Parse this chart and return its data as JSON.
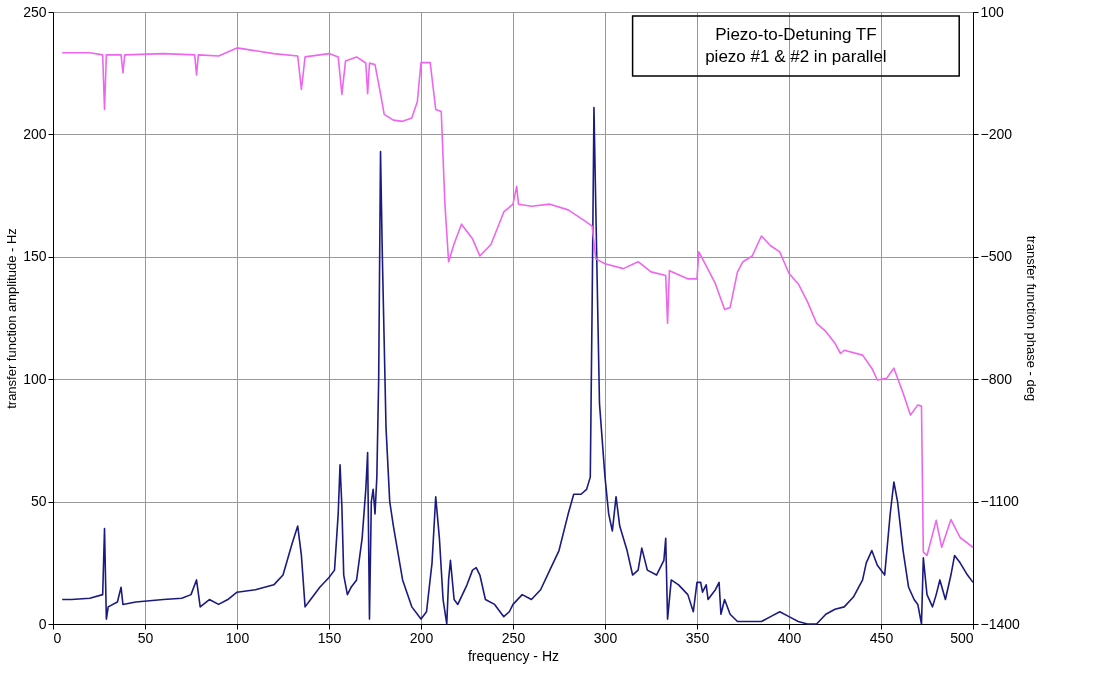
{
  "chart_data": {
    "type": "line",
    "xlabel": "frequency - Hz",
    "ylabel": "transfer function amplitude - Hz",
    "y2label": "transfer function phase - deg",
    "annotations": [
      "Piezo-to-Detuning TF",
      "piezo #1 & #2 in parallel"
    ],
    "xlim": [
      0,
      500
    ],
    "xticks": [
      0,
      50,
      100,
      150,
      200,
      250,
      300,
      350,
      400,
      450,
      500
    ],
    "ylim": [
      0,
      250
    ],
    "yticks": [
      0,
      50,
      100,
      150,
      200,
      250
    ],
    "y2lim": [
      -1400,
      100
    ],
    "y2ticks": [
      -1400,
      -1100,
      -800,
      -500,
      -200,
      100
    ],
    "grid": true,
    "marker": "none",
    "line_style": "solid",
    "series": [
      {
        "color": "#ee66ee",
        "axis": "y2",
        "x": [
          5,
          20,
          27,
          28,
          29,
          37,
          38,
          39,
          60,
          77,
          78,
          79,
          90,
          100,
          120,
          133,
          135,
          137,
          150,
          155,
          157,
          159,
          165,
          170,
          171,
          172,
          175,
          178,
          180,
          185,
          190,
          195,
          198,
          200,
          205,
          208,
          211,
          213,
          215,
          218,
          222,
          228,
          232,
          238,
          245,
          250,
          252,
          253,
          260,
          270,
          280,
          290,
          293,
          295,
          300,
          310,
          318,
          325,
          333,
          334,
          335,
          345,
          350,
          351,
          355,
          360,
          365,
          368,
          372,
          375,
          380,
          385,
          390,
          395,
          400,
          405,
          410,
          415,
          420,
          425,
          428,
          430,
          440,
          445,
          448,
          453,
          457,
          462,
          466,
          470,
          472,
          473,
          475,
          480,
          483,
          488,
          493,
          500
        ],
        "values": [
          0,
          0,
          -5,
          -139,
          -5,
          -5,
          -49,
          -5,
          -2,
          -5,
          -54,
          -5,
          -8,
          12,
          -2,
          -8,
          -90,
          -10,
          -2,
          -10,
          -102,
          -20,
          -10,
          -25,
          -100,
          -25,
          -29,
          -100,
          -151,
          -165,
          -168,
          -160,
          -120,
          -24,
          -24,
          -139,
          -144,
          -371,
          -512,
          -468,
          -420,
          -456,
          -498,
          -470,
          -390,
          -371,
          -327,
          -371,
          -376,
          -371,
          -385,
          -415,
          -425,
          -505,
          -517,
          -529,
          -512,
          -537,
          -546,
          -663,
          -534,
          -554,
          -554,
          -488,
          -522,
          -566,
          -629,
          -624,
          -537,
          -512,
          -498,
          -449,
          -473,
          -488,
          -541,
          -566,
          -610,
          -663,
          -683,
          -712,
          -737,
          -729,
          -741,
          -773,
          -802,
          -798,
          -773,
          -834,
          -888,
          -863,
          -866,
          -1224,
          -1232,
          -1146,
          -1212,
          -1144,
          -1188,
          -1212
        ]
      },
      {
        "color": "#1a1a80",
        "x": [
          5,
          10,
          20,
          27,
          28,
          29,
          30,
          35,
          37,
          38,
          45,
          60,
          70,
          75,
          78,
          80,
          85,
          90,
          95,
          100,
          110,
          120,
          125,
          130,
          133,
          135,
          137,
          140,
          145,
          150,
          153,
          155,
          156,
          157,
          158,
          160,
          162,
          165,
          168,
          170,
          171,
          172,
          173,
          174,
          175,
          176,
          177,
          178,
          179,
          181,
          183,
          185,
          190,
          195,
          200,
          203,
          206,
          208,
          210,
          212,
          214,
          215,
          216,
          218,
          220,
          225,
          228,
          230,
          232,
          235,
          240,
          245,
          248,
          250,
          255,
          260,
          265,
          270,
          275,
          280,
          283,
          287,
          290,
          292,
          293,
          294,
          295,
          297,
          300,
          302,
          304,
          306,
          308,
          312,
          315,
          318,
          320,
          323,
          328,
          332,
          333,
          334,
          336,
          340,
          345,
          348,
          350,
          352,
          353,
          355,
          356,
          360,
          362,
          363,
          365,
          368,
          372,
          378,
          385,
          390,
          395,
          400,
          405,
          410,
          415,
          420,
          425,
          430,
          435,
          440,
          442,
          445,
          448,
          452,
          455,
          457,
          459,
          462,
          465,
          468,
          470,
          472,
          473,
          475,
          478,
          480,
          482,
          485,
          488,
          490,
          493,
          497,
          500
        ],
        "values": [
          10,
          10,
          10.5,
          12,
          39,
          2,
          7,
          9,
          15,
          8,
          9,
          10,
          10.5,
          12,
          18,
          7,
          10,
          8,
          10,
          13,
          14,
          16,
          20,
          33,
          40,
          28,
          7,
          10,
          15,
          19,
          22,
          45,
          65,
          48,
          20,
          12,
          15,
          18,
          35,
          55,
          70,
          2,
          50,
          55,
          45,
          60,
          100,
          193,
          150,
          80,
          50,
          40,
          18,
          7,
          2,
          5,
          25,
          52,
          35,
          10,
          0,
          18,
          26,
          10,
          8,
          16,
          22,
          23,
          20,
          10,
          8,
          3,
          5,
          8,
          12,
          10,
          14,
          22,
          30,
          45,
          53,
          53,
          55,
          60,
          130,
          211,
          170,
          90,
          60,
          45,
          38,
          52,
          40,
          30,
          20,
          22,
          31,
          22,
          20,
          26,
          35,
          2,
          18,
          16,
          12,
          5,
          17,
          17,
          13,
          16,
          10,
          14,
          17,
          4,
          10,
          4,
          1,
          1,
          1,
          3,
          5,
          3,
          1,
          0,
          0,
          4,
          6,
          7,
          11,
          18,
          25,
          30,
          24,
          20,
          45,
          58,
          50,
          30,
          15,
          10,
          8,
          0,
          27,
          12,
          7,
          12,
          18,
          10,
          20,
          28,
          25,
          20,
          17
        ]
      }
    ]
  }
}
